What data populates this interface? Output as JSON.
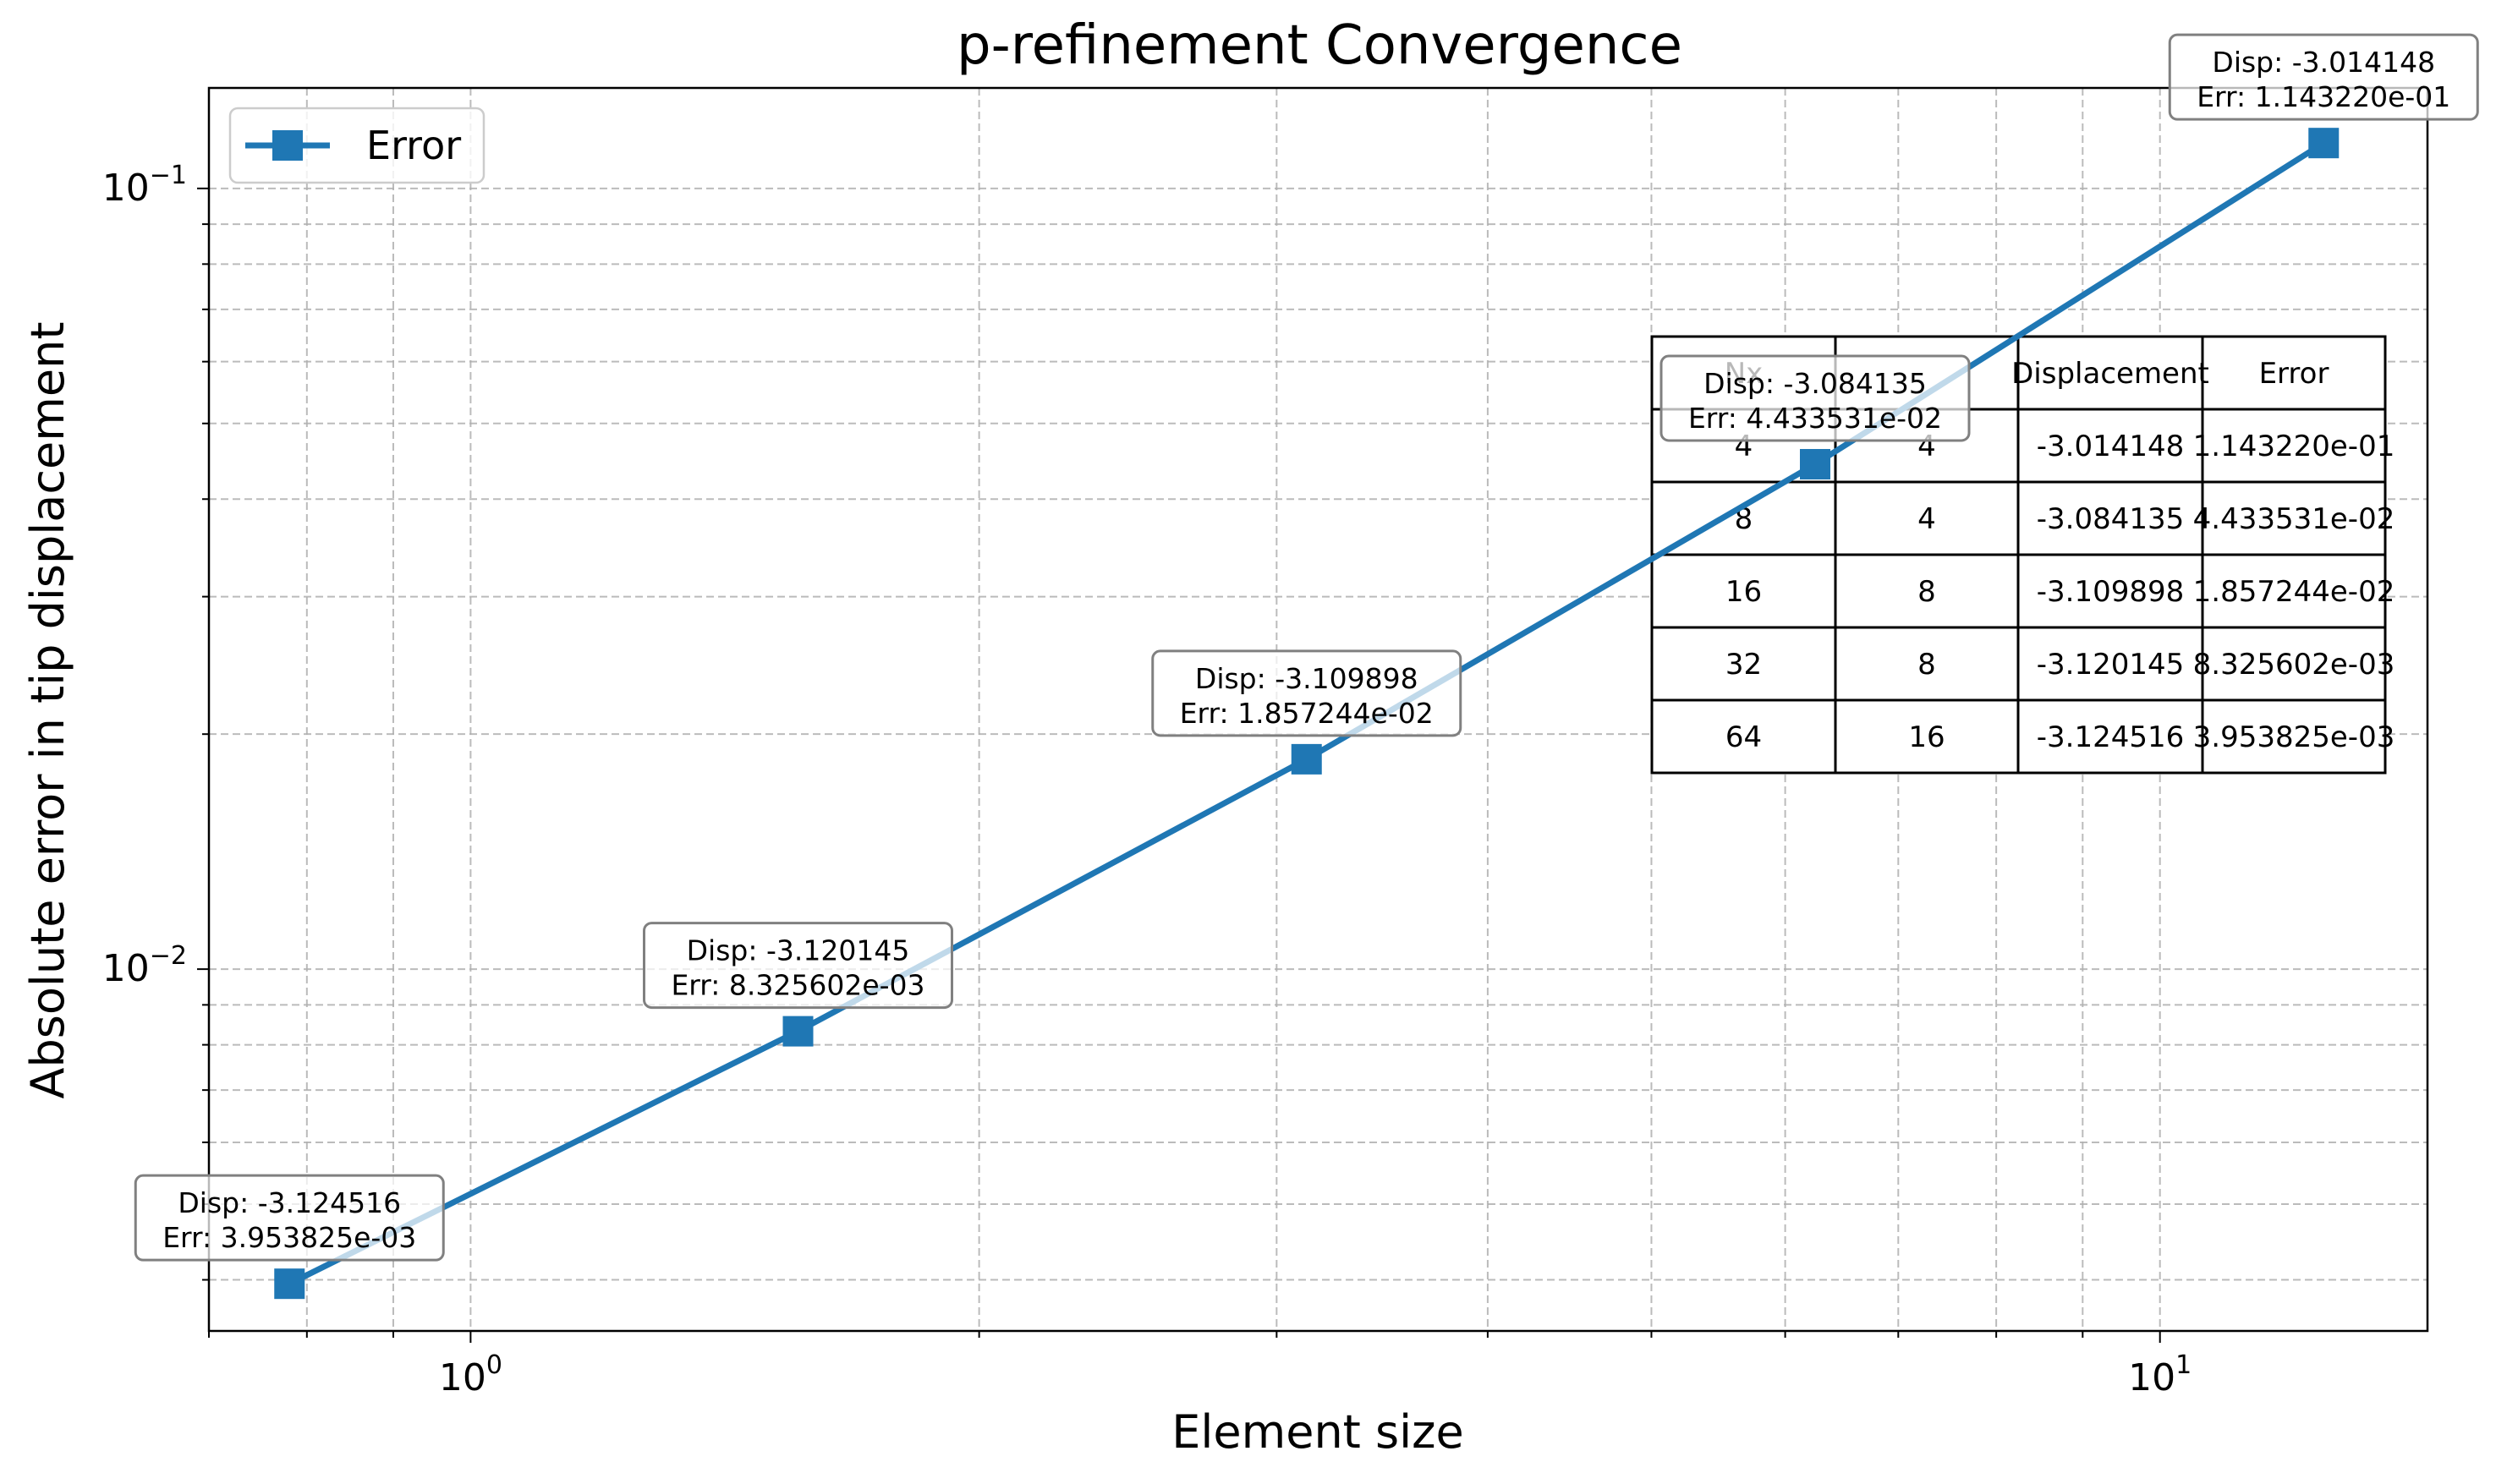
{
  "chart_data": {
    "type": "line",
    "title": "p-refinement Convergence",
    "xlabel": "Element size",
    "ylabel": "Absolute error in tip displacement",
    "x_scale": "log",
    "y_scale": "log",
    "xlim": [
      0.7,
      14.4
    ],
    "ylim": [
      0.00344,
      0.1345
    ],
    "grid": true,
    "grid_style": "dashed",
    "x_ticks": [
      {
        "value": 1,
        "label": "10^0"
      },
      {
        "value": 10,
        "label": "10^1"
      }
    ],
    "y_ticks": [
      {
        "value": 0.01,
        "label": "10^−2"
      },
      {
        "value": 0.1,
        "label": "10^−1"
      }
    ],
    "legend": {
      "position": "top-left",
      "entries": [
        "Error"
      ]
    },
    "series": [
      {
        "name": "Error",
        "color": "#1f77b4",
        "marker": "square",
        "points": [
          {
            "x": 0.78125,
            "y": 0.003953825
          },
          {
            "x": 1.5625,
            "y": 0.008325602
          },
          {
            "x": 3.125,
            "y": 0.01857244
          },
          {
            "x": 6.25,
            "y": 0.04433531
          },
          {
            "x": 12.5,
            "y": 0.114322
          }
        ]
      }
    ],
    "annotations": [
      {
        "x": 0.78125,
        "y": 0.003953825,
        "line1": "Disp: -3.124516",
        "line2": "Err: 3.953825e-03"
      },
      {
        "x": 1.5625,
        "y": 0.008325602,
        "line1": "Disp: -3.120145",
        "line2": "Err: 8.325602e-03"
      },
      {
        "x": 3.125,
        "y": 0.01857244,
        "line1": "Disp: -3.109898",
        "line2": "Err: 1.857244e-02"
      },
      {
        "x": 6.25,
        "y": 0.04433531,
        "line1": "Disp: -3.084135",
        "line2": "Err: 4.433531e-02"
      },
      {
        "x": 12.5,
        "y": 0.114322,
        "line1": "Disp: -3.014148",
        "line2": "Err: 1.143220e-01"
      }
    ],
    "table": {
      "columns": [
        "Nx",
        "",
        "Displacement",
        "Error"
      ],
      "rows": [
        [
          "4",
          "4",
          "-3.014148",
          "1.143220e-01"
        ],
        [
          "8",
          "4",
          "-3.084135",
          "4.433531e-02"
        ],
        [
          "16",
          "8",
          "-3.109898",
          "1.857244e-02"
        ],
        [
          "32",
          "8",
          "-3.120145",
          "8.325602e-03"
        ],
        [
          "64",
          "16",
          "-3.124516",
          "3.953825e-03"
        ]
      ]
    }
  }
}
